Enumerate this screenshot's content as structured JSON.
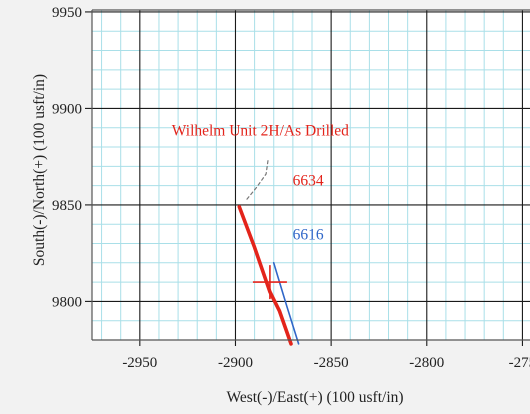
{
  "chart_data": {
    "type": "line",
    "xlabel": "West(-)/East(+) (100 usft/in)",
    "ylabel": "South(-)/North(+) (100 usft/in)",
    "x_ticks": [
      "-2950",
      "-2900",
      "-2850",
      "-2800",
      "-275"
    ],
    "y_ticks": [
      "9950",
      "9900",
      "9850",
      "9800"
    ],
    "xlim": [
      -2975,
      -2745
    ],
    "ylim": [
      9780,
      9951
    ],
    "grid": true,
    "colors": {
      "background": "#ffffff",
      "minor_grid": "#a9dfe8",
      "major_grid": "#1a1a1a",
      "red": "#e3241b",
      "blue": "#2f66c8",
      "dash": "#777777"
    },
    "annotations": [
      {
        "text": "Wilhelm Unit 2H/As Drilled",
        "x": -2887,
        "y": 9886,
        "color": "#e3241b"
      },
      {
        "text": "6634",
        "x": -2862,
        "y": 9860,
        "color": "#e3241b"
      },
      {
        "text": "6616",
        "x": -2862,
        "y": 9832,
        "color": "#2f66c8"
      }
    ],
    "series": [
      {
        "color": "#e3241b",
        "style": "solid-thick",
        "x": [
          -2898,
          -2890,
          -2882,
          -2877,
          -2871
        ],
        "y": [
          9849,
          9828,
          9805,
          9795,
          9778
        ]
      },
      {
        "color": "#2f66c8",
        "style": "solid-thin",
        "x": [
          -2880,
          -2877,
          -2873,
          -2867
        ],
        "y": [
          9820,
          9810,
          9797,
          9778
        ]
      },
      {
        "color": "#777777",
        "style": "dashed",
        "x": [
          -2894,
          -2889,
          -2884,
          -2883
        ],
        "y": [
          9853,
          9859,
          9866,
          9873
        ]
      }
    ],
    "markers": [
      {
        "type": "plus",
        "x": -2882,
        "y": 9810,
        "color": "#e3241b"
      }
    ]
  }
}
